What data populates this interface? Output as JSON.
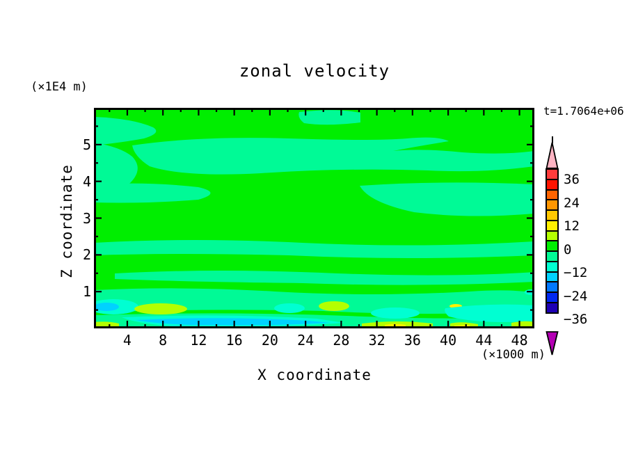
{
  "title": "zonal velocity",
  "time_label": "t=1.7064e+06",
  "x_axis": {
    "label": "X coordinate",
    "unit": "(×1000 m)",
    "ticks": [
      "4",
      "8",
      "12",
      "16",
      "20",
      "24",
      "28",
      "32",
      "36",
      "40",
      "44",
      "48"
    ],
    "tick_values": [
      4,
      8,
      12,
      16,
      20,
      24,
      28,
      32,
      36,
      40,
      44,
      48
    ]
  },
  "y_axis": {
    "label": "Z coordinate",
    "unit": "(×1E4 m)",
    "ticks": [
      "5",
      "4",
      "3",
      "2",
      "1"
    ],
    "tick_values": [
      5,
      4,
      3,
      2,
      1
    ]
  },
  "colorbar": {
    "labels": [
      "36",
      "24",
      "12",
      "0",
      "−12",
      "−24",
      "−36"
    ],
    "palette": [
      "#FF3C3C",
      "#FF1400",
      "#FF6400",
      "#FF9600",
      "#FFC800",
      "#FFF000",
      "#B4FF00",
      "#00EE00",
      "#00FA96",
      "#00FFD2",
      "#00D2FF",
      "#0078FF",
      "#0028F0",
      "#1E00B4"
    ],
    "arrow_top_color": "#FFB4C3",
    "arrow_bottom_color": "#B400B4"
  },
  "field_colors": {
    "green": "#00EE00",
    "spring_green": "#00FA96",
    "turquoise": "#00FFD2",
    "cyan": "#00D2FF",
    "green_yellow": "#B4FF00",
    "yellow": "#FFF000"
  },
  "chart_data": {
    "type": "contour",
    "title": "zonal velocity",
    "xlabel": "X coordinate",
    "x_unit": "(×1000 m)",
    "ylabel": "Z coordinate",
    "y_unit": "(×1E4 m)",
    "time_annotation": "t=1.7064e+06",
    "x_range": [
      0,
      50
    ],
    "z_range": [
      0,
      6
    ],
    "x_tick_step": 4,
    "z_tick_step": 1,
    "contour_interval": 6,
    "contour_levels": [
      -42,
      -36,
      -30,
      -24,
      -18,
      -12,
      -6,
      0,
      6,
      12,
      18,
      24,
      30,
      36,
      42
    ],
    "colorbar_tick_labels": [
      36,
      24,
      12,
      0,
      -12,
      -24,
      -36
    ],
    "colorbar_out_of_range_arrows": true,
    "grid": false,
    "legend_position": "right",
    "field_summary": "Zonal velocity field dominated by values in the -6..0 band (green) with wavy horizontal bands of -12..-6 (spring green) across all depths; near the bottom boundary small patches reach -24..-12 (turquoise/cyan) and +0..+18 (green-yellow to yellow)."
  }
}
